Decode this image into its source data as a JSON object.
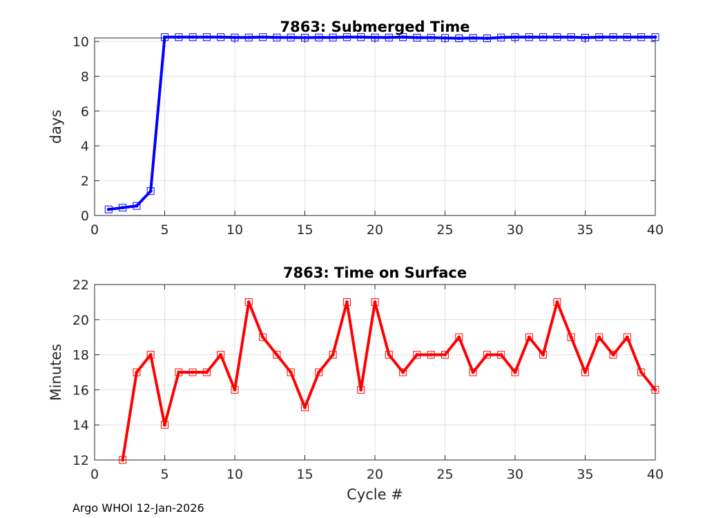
{
  "chart_data": [
    {
      "type": "line",
      "title": "7863: Submerged Time",
      "xlabel": "",
      "ylabel": "days",
      "xlim": [
        0,
        40
      ],
      "ylim": [
        0,
        10.2
      ],
      "xticks": [
        0,
        5,
        10,
        15,
        20,
        25,
        30,
        35,
        40
      ],
      "yticks": [
        0,
        2,
        4,
        6,
        8,
        10
      ],
      "grid": true,
      "color": "#0000ff",
      "marker": "square",
      "series": [
        {
          "name": "Submerged Time",
          "x": [
            1,
            2,
            3,
            4,
            5,
            6,
            7,
            8,
            9,
            10,
            11,
            12,
            13,
            14,
            15,
            16,
            17,
            18,
            19,
            20,
            21,
            22,
            23,
            24,
            25,
            26,
            27,
            28,
            29,
            30,
            31,
            32,
            33,
            34,
            35,
            36,
            37,
            38,
            39,
            40
          ],
          "y": [
            0.35,
            0.45,
            0.55,
            1.4,
            10.25,
            10.25,
            10.25,
            10.25,
            10.25,
            10.23,
            10.23,
            10.25,
            10.23,
            10.23,
            10.22,
            10.23,
            10.23,
            10.25,
            10.25,
            10.23,
            10.23,
            10.25,
            10.22,
            10.22,
            10.2,
            10.18,
            10.2,
            10.18,
            10.23,
            10.25,
            10.25,
            10.25,
            10.25,
            10.25,
            10.22,
            10.25,
            10.25,
            10.25,
            10.25,
            10.25
          ]
        }
      ]
    },
    {
      "type": "line",
      "title": "7863: Time on Surface",
      "xlabel": "Cycle #",
      "ylabel": "Minutes",
      "xlim": [
        0,
        40
      ],
      "ylim": [
        12,
        22
      ],
      "xticks": [
        0,
        5,
        10,
        15,
        20,
        25,
        30,
        35,
        40
      ],
      "yticks": [
        12,
        14,
        16,
        18,
        20,
        22
      ],
      "grid": true,
      "color": "#ff0000",
      "marker": "square",
      "series": [
        {
          "name": "Time on Surface",
          "x": [
            2,
            3,
            4,
            5,
            6,
            7,
            8,
            9,
            10,
            11,
            12,
            13,
            14,
            15,
            16,
            17,
            18,
            19,
            20,
            21,
            22,
            23,
            24,
            25,
            26,
            27,
            28,
            29,
            30,
            31,
            32,
            33,
            34,
            35,
            36,
            37,
            38,
            39,
            40
          ],
          "y": [
            12,
            17,
            18,
            14,
            17,
            17,
            17,
            18,
            16,
            21,
            19,
            18,
            17,
            15,
            17,
            18,
            21,
            16,
            21,
            18,
            17,
            18,
            18,
            18,
            19,
            17,
            18,
            18,
            17,
            19,
            18,
            21,
            19,
            17,
            19,
            18,
            19,
            17,
            16
          ]
        }
      ]
    }
  ],
  "footer": {
    "text": "Argo WHOI 12-Jan-2026"
  }
}
